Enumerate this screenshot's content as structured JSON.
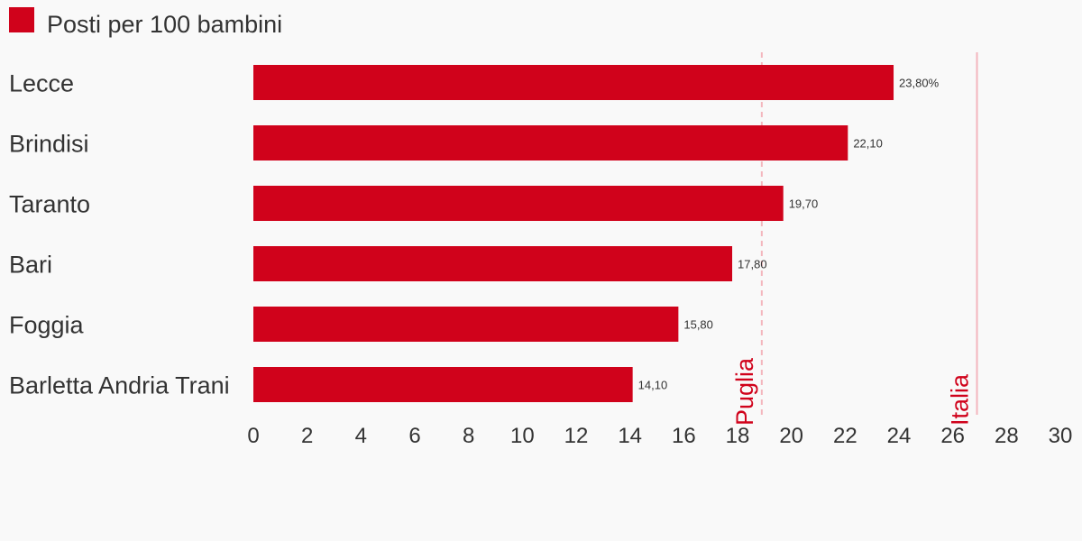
{
  "legend": {
    "label": "Posti per 100 bambini",
    "color": "#d0021b"
  },
  "chart_data": {
    "type": "bar",
    "orientation": "horizontal",
    "title": "",
    "xlabel": "",
    "ylabel": "",
    "categories": [
      "Lecce",
      "Brindisi",
      "Taranto",
      "Bari",
      "Foggia",
      "Barletta Andria Trani"
    ],
    "series": [
      {
        "name": "Posti per 100 bambini",
        "values": [
          23.8,
          22.1,
          19.7,
          17.8,
          15.8,
          14.1
        ],
        "data_labels": [
          "23,80%",
          "22,10",
          "19,70",
          "17,80",
          "15,80",
          "14,10"
        ]
      }
    ],
    "xlim": [
      0,
      30
    ],
    "xticks": [
      0,
      2,
      4,
      6,
      8,
      10,
      12,
      14,
      16,
      18,
      20,
      22,
      24,
      26,
      28,
      30
    ],
    "grid": false,
    "bar_color": "#d0021b",
    "reference_lines": [
      {
        "label": "Puglia",
        "value": 18.9,
        "style": "dashed",
        "color": "#f4b6bd",
        "label_color": "#d0021b"
      },
      {
        "label": "Italia",
        "value": 26.9,
        "style": "solid",
        "color": "#f4b6bd",
        "label_color": "#d0021b"
      }
    ]
  }
}
